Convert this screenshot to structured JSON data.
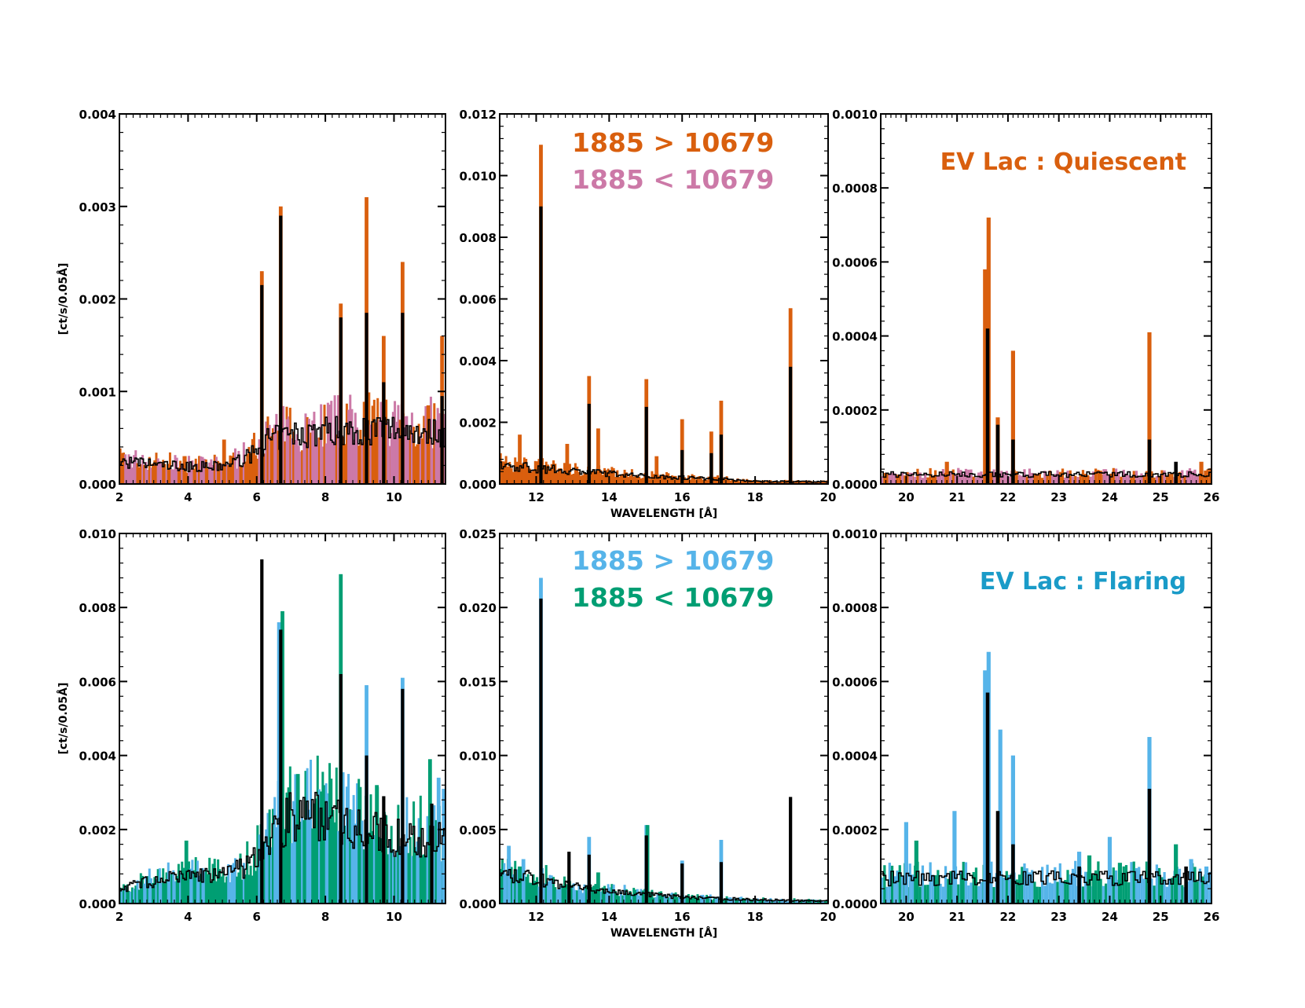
{
  "colors": {
    "orange": "#d95f0e",
    "pink": "#cc79a7",
    "skyblue": "#56b4e9",
    "green": "#009e73",
    "flaring_title": "#1a9bc8",
    "black": "#000000"
  },
  "chart_data": [
    {
      "type": "line",
      "panel": "top-left",
      "ylabel": "[ct/s/0.05Å]",
      "xlim": [
        2,
        11.5
      ],
      "ylim": [
        0,
        0.004
      ],
      "xticks": [
        "2",
        "4",
        "6",
        "8",
        "10"
      ],
      "yticks": [
        "0.000",
        "0.001",
        "0.002",
        "0.003",
        "0.004"
      ],
      "baseline": [
        [
          2,
          0.00028
        ],
        [
          3,
          0.00025
        ],
        [
          4,
          0.00022
        ],
        [
          5,
          0.00022
        ],
        [
          5.8,
          0.00035
        ],
        [
          6.3,
          0.00055
        ],
        [
          7,
          0.00062
        ],
        [
          8,
          0.00068
        ],
        [
          9,
          0.00068
        ],
        [
          10,
          0.0007
        ],
        [
          11.5,
          0.00065
        ]
      ],
      "black_lines": [
        [
          6.15,
          0.00215
        ],
        [
          6.7,
          0.0029
        ],
        [
          8.45,
          0.0018
        ],
        [
          9.2,
          0.00185
        ],
        [
          9.7,
          0.0011
        ],
        [
          10.25,
          0.00185
        ],
        [
          11.4,
          0.00095
        ]
      ],
      "series": [
        {
          "color_key": "orange",
          "lines": [
            [
              5.05,
              0.00048
            ],
            [
              6.15,
              0.0023
            ],
            [
              6.7,
              0.003
            ],
            [
              8.45,
              0.00195
            ],
            [
              9.2,
              0.0031
            ],
            [
              9.7,
              0.0016
            ],
            [
              10.25,
              0.0024
            ],
            [
              11.4,
              0.0016
            ],
            [
              11.0,
              0.00085
            ]
          ]
        },
        {
          "color_key": "pink",
          "lines": [
            [
              6.9,
              0.0007
            ],
            [
              9.95,
              0.00055
            ]
          ]
        }
      ]
    },
    {
      "type": "line",
      "panel": "top-middle",
      "xlabel": "WAVELENGTH [Å]",
      "xlim": [
        11,
        20
      ],
      "ylim": [
        0,
        0.012
      ],
      "xticks": [
        "12",
        "14",
        "16",
        "18",
        "20"
      ],
      "yticks": [
        "0.000",
        "0.002",
        "0.004",
        "0.006",
        "0.008",
        "0.010",
        "0.012"
      ],
      "baseline": [
        [
          11,
          0.0007
        ],
        [
          12,
          0.0006
        ],
        [
          13,
          0.0005
        ],
        [
          14,
          0.0004
        ],
        [
          15,
          0.0003
        ],
        [
          16,
          0.00025
        ],
        [
          17,
          0.0002
        ],
        [
          18,
          0.0001
        ],
        [
          20,
          8e-05
        ]
      ],
      "black_lines": [
        [
          12.13,
          0.009
        ],
        [
          13.45,
          0.0026
        ],
        [
          15.02,
          0.0025
        ],
        [
          16.0,
          0.0011
        ],
        [
          16.8,
          0.001
        ],
        [
          17.07,
          0.0016
        ],
        [
          18.97,
          0.0038
        ]
      ],
      "series": [
        {
          "color_key": "orange",
          "lines": [
            [
              11.55,
              0.0016
            ],
            [
              12.13,
              0.011
            ],
            [
              12.85,
              0.0013
            ],
            [
              13.45,
              0.0035
            ],
            [
              13.7,
              0.0018
            ],
            [
              15.02,
              0.0034
            ],
            [
              15.3,
              0.0009
            ],
            [
              16.0,
              0.0021
            ],
            [
              16.8,
              0.0017
            ],
            [
              17.07,
              0.0027
            ],
            [
              18.97,
              0.0057
            ]
          ]
        }
      ]
    },
    {
      "type": "line",
      "panel": "top-right",
      "xlim": [
        19.5,
        26
      ],
      "ylim": [
        0,
        0.001
      ],
      "xticks": [
        "20",
        "21",
        "22",
        "23",
        "24",
        "25",
        "26"
      ],
      "yticks": [
        "0.0000",
        "0.0002",
        "0.0004",
        "0.0006",
        "0.0008",
        "0.0010"
      ],
      "baseline": [
        [
          19.5,
          3e-05
        ],
        [
          26,
          3e-05
        ]
      ],
      "black_lines": [
        [
          21.6,
          0.00042
        ],
        [
          21.8,
          0.00016
        ],
        [
          22.1,
          0.00012
        ],
        [
          24.78,
          0.00012
        ],
        [
          25.3,
          6e-05
        ]
      ],
      "series": [
        {
          "color_key": "orange",
          "lines": [
            [
              21.55,
              0.00058
            ],
            [
              21.62,
              0.00072
            ],
            [
              21.8,
              0.00018
            ],
            [
              22.1,
              0.00036
            ],
            [
              24.78,
              0.00041
            ],
            [
              20.8,
              6e-05
            ],
            [
              25.8,
              6e-05
            ]
          ]
        },
        {
          "color_key": "pink",
          "lines": [
            [
              23.9,
              4e-05
            ],
            [
              20.1,
              3e-05
            ]
          ]
        }
      ],
      "title": "EV Lac : Quiescent",
      "title_color_key": "orange"
    },
    {
      "type": "line",
      "panel": "bottom-left",
      "ylabel": "[ct/s/0.05Å]",
      "xlim": [
        2,
        11.5
      ],
      "ylim": [
        0,
        0.01
      ],
      "xticks": [
        "2",
        "4",
        "6",
        "8",
        "10"
      ],
      "yticks": [
        "0.000",
        "0.002",
        "0.004",
        "0.006",
        "0.008",
        "0.010"
      ],
      "baseline": [
        [
          2,
          0.0005
        ],
        [
          3,
          0.0007
        ],
        [
          4,
          0.0009
        ],
        [
          5,
          0.0009
        ],
        [
          5.8,
          0.0012
        ],
        [
          6.3,
          0.002
        ],
        [
          7,
          0.0028
        ],
        [
          8,
          0.0028
        ],
        [
          9,
          0.0024
        ],
        [
          10,
          0.0021
        ],
        [
          11.5,
          0.002
        ]
      ],
      "black_lines": [
        [
          6.15,
          0.0093
        ],
        [
          6.7,
          0.0074
        ],
        [
          8.45,
          0.0062
        ],
        [
          9.2,
          0.004
        ],
        [
          9.7,
          0.0029
        ],
        [
          10.25,
          0.0058
        ],
        [
          11.1,
          0.0027
        ]
      ],
      "series": [
        {
          "color_key": "skyblue",
          "lines": [
            [
              6.65,
              0.0076
            ],
            [
              9.2,
              0.0059
            ],
            [
              10.25,
              0.0061
            ],
            [
              11.3,
              0.0034
            ],
            [
              11.45,
              0.0031
            ]
          ]
        },
        {
          "color_key": "green",
          "lines": [
            [
              3.95,
              0.0017
            ],
            [
              6.75,
              0.0079
            ],
            [
              8.45,
              0.0089
            ],
            [
              7.2,
              0.0035
            ],
            [
              9.5,
              0.0032
            ],
            [
              11.05,
              0.0039
            ]
          ]
        }
      ]
    },
    {
      "type": "line",
      "panel": "bottom-middle",
      "xlabel": "WAVELENGTH [Å]",
      "xlim": [
        11,
        20
      ],
      "ylim": [
        0,
        0.025
      ],
      "xticks": [
        "12",
        "14",
        "16",
        "18",
        "20"
      ],
      "yticks": [
        "0.000",
        "0.005",
        "0.010",
        "0.015",
        "0.020",
        "0.025"
      ],
      "baseline": [
        [
          11,
          0.0022
        ],
        [
          12,
          0.002
        ],
        [
          13,
          0.0013
        ],
        [
          14,
          0.001
        ],
        [
          15,
          0.0007
        ],
        [
          16,
          0.0005
        ],
        [
          17,
          0.0004
        ],
        [
          18,
          0.0003
        ],
        [
          20,
          0.0002
        ]
      ],
      "black_lines": [
        [
          12.13,
          0.0206
        ],
        [
          13.45,
          0.0033
        ],
        [
          15.02,
          0.0046
        ],
        [
          16.0,
          0.0027
        ],
        [
          17.07,
          0.0028
        ],
        [
          18.97,
          0.0072
        ],
        [
          12.9,
          0.0035
        ]
      ],
      "series": [
        {
          "color_key": "skyblue",
          "lines": [
            [
              12.13,
              0.022
            ],
            [
              13.45,
              0.0045
            ],
            [
              15.02,
              0.0053
            ],
            [
              16.0,
              0.0029
            ],
            [
              17.07,
              0.0043
            ],
            [
              11.25,
              0.0039
            ],
            [
              11.65,
              0.003
            ]
          ]
        },
        {
          "color_key": "green",
          "lines": [
            [
              11.55,
              0.0025
            ],
            [
              13.7,
              0.0021
            ],
            [
              15.05,
              0.0053
            ]
          ]
        }
      ]
    },
    {
      "type": "line",
      "panel": "bottom-right",
      "xlim": [
        19.5,
        26
      ],
      "ylim": [
        0,
        0.001
      ],
      "xticks": [
        "20",
        "21",
        "22",
        "23",
        "24",
        "25",
        "26"
      ],
      "yticks": [
        "0.0000",
        "0.0002",
        "0.0004",
        "0.0006",
        "0.0008",
        "0.0010"
      ],
      "baseline": [
        [
          19.5,
          8e-05
        ],
        [
          26,
          8e-05
        ]
      ],
      "black_lines": [
        [
          21.6,
          0.00057
        ],
        [
          21.8,
          0.00025
        ],
        [
          22.1,
          0.00016
        ],
        [
          24.78,
          0.00031
        ],
        [
          23.4,
          0.0001
        ],
        [
          25.5,
          0.0001
        ]
      ],
      "series": [
        {
          "color_key": "skyblue",
          "lines": [
            [
              20.0,
              0.00022
            ],
            [
              20.95,
              0.00025
            ],
            [
              21.55,
              0.00063
            ],
            [
              21.62,
              0.00068
            ],
            [
              21.85,
              0.00047
            ],
            [
              22.1,
              0.0004
            ],
            [
              23.4,
              0.00014
            ],
            [
              24.0,
              0.00018
            ],
            [
              24.78,
              0.00045
            ],
            [
              25.6,
              0.00012
            ],
            [
              25.9,
              0.0001
            ]
          ]
        },
        {
          "color_key": "green",
          "lines": [
            [
              20.2,
              0.00017
            ],
            [
              21.1,
              8e-05
            ],
            [
              23.6,
              0.00013
            ],
            [
              25.3,
              0.00016
            ],
            [
              24.2,
              0.00011
            ]
          ]
        }
      ],
      "title": "EV Lac : Flaring",
      "title_color_key": "flaring_title"
    }
  ],
  "legends": {
    "quiescent": [
      {
        "label": "1885 > 10679",
        "color_key": "orange"
      },
      {
        "label": "1885 < 10679",
        "color_key": "pink"
      }
    ],
    "flaring": [
      {
        "label": "1885 > 10679",
        "color_key": "skyblue"
      },
      {
        "label": "1885 < 10679",
        "color_key": "green"
      }
    ]
  }
}
